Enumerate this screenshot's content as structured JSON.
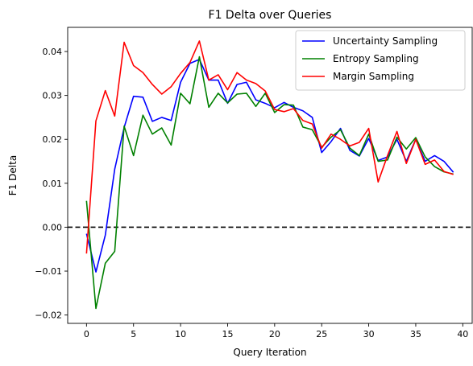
{
  "chart_data": {
    "type": "line",
    "title": "F1 Delta over Queries",
    "xlabel": "Query Iteration",
    "ylabel": "F1 Delta",
    "xlim": [
      -2,
      41
    ],
    "ylim": [
      -0.0219,
      0.0455
    ],
    "xticks": [
      0,
      5,
      10,
      15,
      20,
      25,
      30,
      35,
      40
    ],
    "yticks": [
      -0.02,
      -0.01,
      0.0,
      0.01,
      0.02,
      0.03,
      0.04
    ],
    "ytick_labels": [
      "−0.02",
      "−0.01",
      "0.00",
      "0.01",
      "0.02",
      "0.03",
      "0.04"
    ],
    "grid": false,
    "legend": "top-right",
    "reference_line": {
      "y": 0,
      "style": "dashed",
      "color": "#000000"
    },
    "x": [
      0,
      1,
      2,
      3,
      4,
      5,
      6,
      7,
      8,
      9,
      10,
      11,
      12,
      13,
      14,
      15,
      16,
      17,
      18,
      19,
      20,
      21,
      22,
      23,
      24,
      25,
      26,
      27,
      28,
      29,
      30,
      31,
      32,
      33,
      34,
      35,
      36,
      37,
      38,
      39
    ],
    "series": [
      {
        "name": "Uncertainty Sampling",
        "color": "#0000ff",
        "values": [
          -0.0015,
          -0.0102,
          -0.0018,
          0.0132,
          0.0227,
          0.0298,
          0.0296,
          0.0241,
          0.025,
          0.0243,
          0.033,
          0.0373,
          0.0382,
          0.0335,
          0.0335,
          0.0282,
          0.0325,
          0.033,
          0.029,
          0.0282,
          0.0272,
          0.0284,
          0.0273,
          0.0265,
          0.025,
          0.017,
          0.0195,
          0.0225,
          0.0175,
          0.0162,
          0.0202,
          0.0152,
          0.016,
          0.02,
          0.015,
          0.02,
          0.015,
          0.0163,
          0.015,
          0.0125
        ]
      },
      {
        "name": "Entropy Sampling",
        "color": "#008000",
        "values": [
          0.006,
          -0.0185,
          -0.0082,
          -0.0055,
          0.023,
          0.0163,
          0.0255,
          0.0212,
          0.0226,
          0.0187,
          0.0305,
          0.0281,
          0.0388,
          0.0273,
          0.0305,
          0.0283,
          0.0303,
          0.0305,
          0.0275,
          0.0305,
          0.0261,
          0.0279,
          0.0278,
          0.0228,
          0.0222,
          0.0182,
          0.0205,
          0.0222,
          0.018,
          0.0163,
          0.0212,
          0.015,
          0.0153,
          0.0205,
          0.0178,
          0.0204,
          0.016,
          0.0138,
          0.0126,
          0.0121
        ]
      },
      {
        "name": "Margin Sampling",
        "color": "#ff0000",
        "values": [
          -0.006,
          0.0242,
          0.0311,
          0.0253,
          0.0421,
          0.0368,
          0.0352,
          0.0325,
          0.0303,
          0.032,
          0.035,
          0.0375,
          0.0424,
          0.0335,
          0.0347,
          0.0313,
          0.0352,
          0.0335,
          0.0327,
          0.031,
          0.0268,
          0.0263,
          0.027,
          0.0243,
          0.0235,
          0.018,
          0.0212,
          0.02,
          0.0185,
          0.0193,
          0.0225,
          0.0103,
          0.0163,
          0.0218,
          0.0145,
          0.02,
          0.0143,
          0.0153,
          0.0127,
          0.012
        ]
      }
    ]
  }
}
